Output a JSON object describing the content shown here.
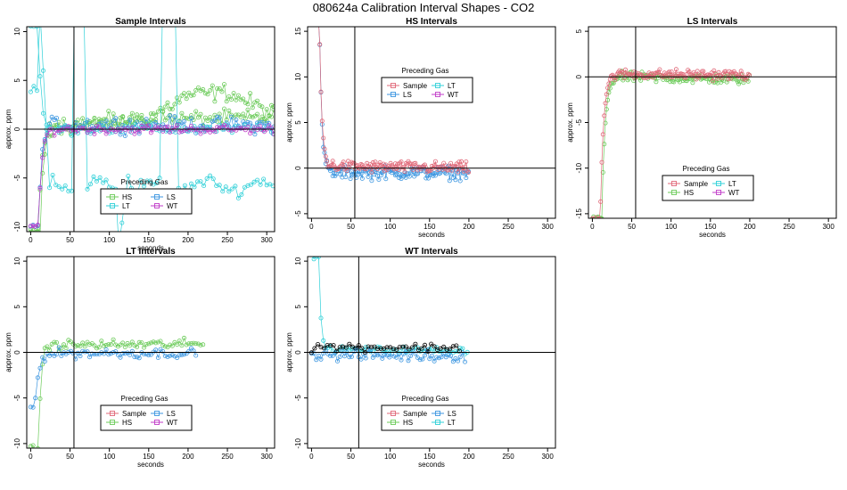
{
  "figure": {
    "title": "080624a   Calibration Interval Shapes - CO2"
  },
  "colors": {
    "Sample": "#E06878",
    "HS": "#6CCB5A",
    "LS": "#3C96E0",
    "LT": "#2FD0D8",
    "WT": "#C03BC8",
    "unlabeled": "#000000",
    "axis": "#000000"
  },
  "chart_data": [
    {
      "type": "scatter",
      "title": "Sample Intervals",
      "xlabel": "seconds",
      "ylabel": "approx. ppm",
      "xlim": [
        -5,
        310
      ],
      "ylim": [
        -10.5,
        10.5
      ],
      "xticks": [
        0,
        50,
        100,
        150,
        200,
        250,
        300
      ],
      "yticks": [
        -10,
        -5,
        0,
        5,
        10
      ],
      "ref_lines": {
        "x": 55,
        "y": 0
      },
      "legend": {
        "title": "Preceding Gas",
        "placement": "lower-center",
        "ncol": 2,
        "entries": [
          "HS",
          "LS",
          "LT",
          "WT"
        ]
      },
      "series": [
        {
          "name": "HS",
          "shape": "step",
          "start": -10.5,
          "t0": 10,
          "tau": 4,
          "xmax": 310,
          "step": 3,
          "noise": 1.0,
          "drift": [
            [
              40,
              0.3
            ],
            [
              100,
              0.5
            ],
            [
              150,
              1.2
            ],
            [
              200,
              3.5
            ],
            [
              250,
              3.8
            ],
            [
              310,
              1.5
            ]
          ]
        },
        {
          "name": "HS",
          "shape": "step",
          "start": -10.5,
          "t0": 12,
          "tau": 4,
          "xmax": 310,
          "step": 3,
          "noise": 0.9,
          "drift": [
            [
              40,
              0.5
            ],
            [
              150,
              1.0
            ],
            [
              310,
              1.2
            ]
          ]
        },
        {
          "name": "LS",
          "shape": "step",
          "start": -10,
          "t0": 10,
          "tau": 4,
          "xmax": 310,
          "step": 3,
          "noise": 0.9,
          "drift": [
            [
              40,
              0.5
            ],
            [
              310,
              0.4
            ]
          ]
        },
        {
          "name": "LT",
          "shape": "lt-wild",
          "xmax": 310,
          "step": 4,
          "noise": 0.7
        },
        {
          "name": "LT",
          "shape": "step",
          "start": 10.5,
          "t0": 10,
          "tau": 3,
          "xmax": 310,
          "step": 4,
          "noise": 0.6,
          "drift": [
            [
              40,
              0.0
            ],
            [
              310,
              0.0
            ]
          ]
        },
        {
          "name": "WT",
          "shape": "step",
          "start": -10,
          "t0": 10,
          "tau": 4,
          "xmax": 310,
          "step": 3,
          "noise": 0.5,
          "drift": [
            [
              40,
              0.0
            ],
            [
              310,
              0.0
            ]
          ]
        }
      ]
    },
    {
      "type": "scatter",
      "title": "HS Intervals",
      "xlabel": "seconds",
      "ylabel": "approx. ppm",
      "xlim": [
        -5,
        310
      ],
      "ylim": [
        -5.5,
        15.5
      ],
      "xticks": [
        0,
        50,
        100,
        150,
        200,
        250,
        300
      ],
      "yticks": [
        -5,
        0,
        5,
        10,
        15
      ],
      "ref_lines": {
        "x": 55,
        "y": 0
      },
      "legend": {
        "title": "Preceding Gas",
        "placement": "upper-center",
        "ncol": 2,
        "entries": [
          "Sample",
          "LT",
          "LS",
          "WT"
        ]
      },
      "series": [
        {
          "name": "LS",
          "shape": "step",
          "start": 16,
          "t0": 10,
          "tau": 3,
          "xmax": 200,
          "step": 1.5,
          "noise": 0.8,
          "drift": [
            [
              30,
              -0.5
            ],
            [
              200,
              -0.5
            ]
          ]
        },
        {
          "name": "Sample",
          "shape": "step",
          "start": 16,
          "t0": 10,
          "tau": 3,
          "xmax": 200,
          "step": 1.5,
          "noise": 0.7,
          "drift": [
            [
              30,
              0.2
            ],
            [
              200,
              0.0
            ]
          ]
        }
      ]
    },
    {
      "type": "scatter",
      "title": "LS Intervals",
      "xlabel": "seconds",
      "ylabel": "approx. ppm",
      "xlim": [
        -5,
        310
      ],
      "ylim": [
        -15.5,
        5.5
      ],
      "xticks": [
        0,
        50,
        100,
        150,
        200,
        250,
        300
      ],
      "yticks": [
        -15,
        -10,
        -5,
        0,
        5
      ],
      "ref_lines": {
        "x": 55,
        "y": 0
      },
      "legend": {
        "title": "Preceding Gas",
        "placement": "lower-center",
        "ncol": 2,
        "entries": [
          "Sample",
          "LT",
          "HS",
          "WT"
        ]
      },
      "series": [
        {
          "name": "HS",
          "shape": "step",
          "start": -15.5,
          "t0": 12,
          "tau": 4,
          "xmax": 200,
          "step": 1.5,
          "noise": 0.6,
          "drift": [
            [
              30,
              0.0
            ],
            [
              200,
              -0.3
            ]
          ]
        },
        {
          "name": "Sample",
          "shape": "step",
          "start": -15.5,
          "t0": 10,
          "tau": 4,
          "xmax": 200,
          "step": 1.5,
          "noise": 0.6,
          "drift": [
            [
              30,
              0.3
            ],
            [
              200,
              0.2
            ]
          ]
        }
      ]
    },
    {
      "type": "scatter",
      "title": "LT Intervals",
      "xlabel": "seconds",
      "ylabel": "approx. ppm",
      "xlim": [
        -5,
        310
      ],
      "ylim": [
        -10.5,
        10.5
      ],
      "xticks": [
        0,
        50,
        100,
        150,
        200,
        250,
        300
      ],
      "yticks": [
        -10,
        -5,
        0,
        5,
        10
      ],
      "ref_lines": {
        "x": 55,
        "y": 0
      },
      "legend": {
        "title": "Preceding Gas",
        "placement": "lower-center",
        "ncol": 2,
        "entries": [
          "Sample",
          "LS",
          "HS",
          "WT"
        ]
      },
      "series": [
        {
          "name": "HS",
          "shape": "step",
          "start": -10.5,
          "t0": 10,
          "tau": 3,
          "xmax": 220,
          "step": 3,
          "noise": 0.6,
          "drift": [
            [
              30,
              0.8
            ],
            [
              220,
              0.9
            ]
          ]
        },
        {
          "name": "LS",
          "shape": "step",
          "start": -6,
          "t0": 5,
          "tau": 5,
          "xmax": 210,
          "step": 3,
          "noise": 0.6,
          "drift": [
            [
              30,
              -0.1
            ],
            [
              210,
              -0.1
            ]
          ]
        }
      ]
    },
    {
      "type": "scatter",
      "title": "WT Intervals",
      "xlabel": "seconds",
      "ylabel": "approx. ppm",
      "xlim": [
        -5,
        310
      ],
      "ylim": [
        -10.5,
        10.5
      ],
      "xticks": [
        0,
        50,
        100,
        150,
        200,
        250,
        300
      ],
      "yticks": [
        -10,
        -5,
        0,
        5,
        10
      ],
      "ref_lines": {
        "x": 60,
        "y": 0
      },
      "legend": {
        "title": "Preceding Gas",
        "placement": "lower-center",
        "ncol": 2,
        "entries": [
          "Sample",
          "LS",
          "HS",
          "LT"
        ]
      },
      "series": [
        {
          "name": "LT",
          "shape": "step",
          "start": 10.5,
          "t0": 10,
          "tau": 2,
          "xmax": 200,
          "step": 3,
          "noise": 0.4,
          "drift": [
            [
              30,
              0.3
            ],
            [
              200,
              0.2
            ]
          ]
        },
        {
          "name": "LS",
          "shape": "step",
          "start": 0,
          "t0": 0,
          "tau": 1,
          "xmax": 195,
          "step": 3,
          "noise": 0.7,
          "drift": [
            [
              10,
              -0.3
            ],
            [
              195,
              -0.4
            ]
          ]
        },
        {
          "name": "unlabeled",
          "shape": "step",
          "start": 0,
          "t0": 0,
          "tau": 1,
          "xmax": 190,
          "step": 4,
          "noise": 0.5,
          "drift": [
            [
              10,
              0.6
            ],
            [
              190,
              0.5
            ]
          ]
        }
      ]
    }
  ]
}
